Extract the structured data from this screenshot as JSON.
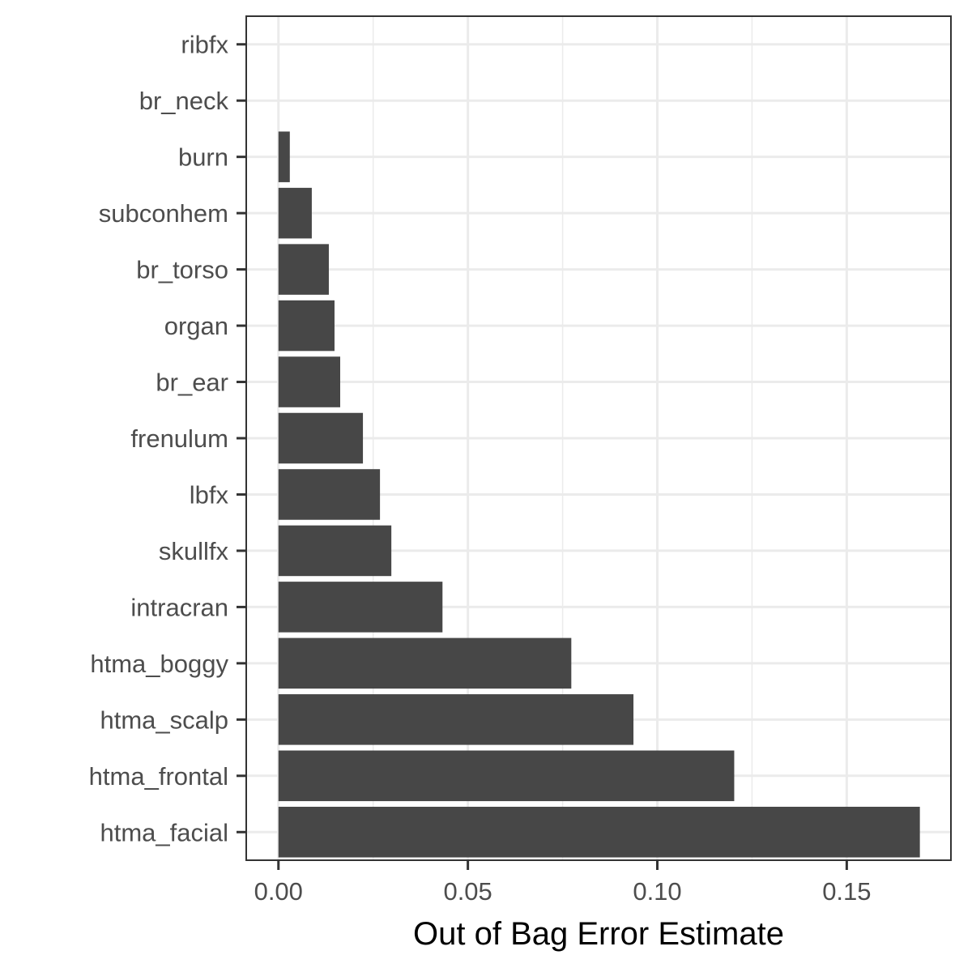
{
  "chart_data": {
    "type": "bar",
    "orientation": "horizontal",
    "title": "",
    "xlabel": "Out of Bag Error Estimate",
    "ylabel": "",
    "categories": [
      "ribfx",
      "br_neck",
      "burn",
      "subconhem",
      "br_torso",
      "organ",
      "br_ear",
      "frenulum",
      "lbfx",
      "skullfx",
      "intracran",
      "htma_boggy",
      "htma_scalp",
      "htma_frontal",
      "htma_facial"
    ],
    "values": [
      0.0,
      0.0,
      0.003,
      0.0088,
      0.0133,
      0.0148,
      0.0163,
      0.0223,
      0.0268,
      0.0298,
      0.0433,
      0.0773,
      0.0937,
      0.1203,
      0.1693
    ],
    "xlim": [
      -0.0085,
      0.1775
    ],
    "xticks": [
      0.0,
      0.05,
      0.1,
      0.15
    ],
    "xtick_labels": [
      "0.00",
      "0.05",
      "0.10",
      "0.15"
    ],
    "bar_color": "#474747",
    "grid": true,
    "theme": "bw"
  }
}
